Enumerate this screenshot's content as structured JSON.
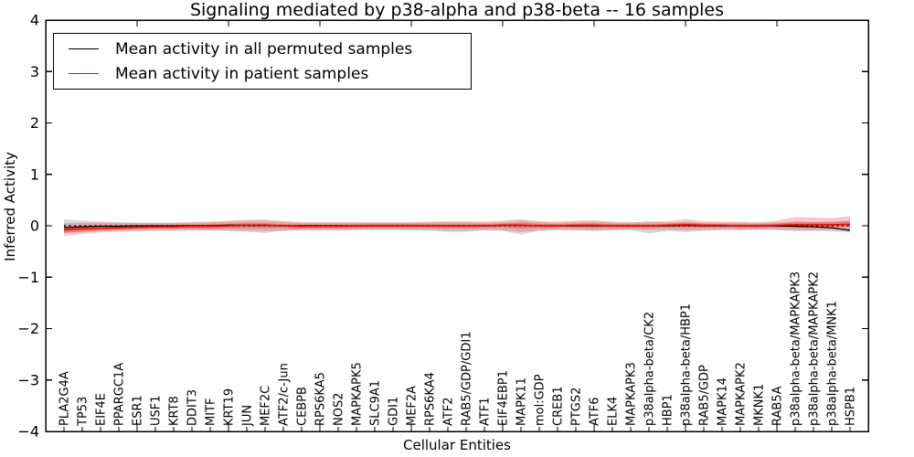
{
  "chart_data": {
    "type": "line",
    "title": "Signaling mediated by p38-alpha and p38-beta -- 16 samples",
    "xlabel": "Cellular Entities",
    "ylabel": "Inferred Activity",
    "ylim": [
      -4,
      4
    ],
    "yticks": [
      4,
      3,
      2,
      1,
      0,
      -1,
      -2,
      -3,
      -4
    ],
    "ytick_labels": [
      "4",
      "3",
      "2",
      "1",
      "0",
      "−1",
      "−2",
      "−3",
      "−4"
    ],
    "grid": false,
    "legend_position": "upper left",
    "categories": [
      "PLA2G4A",
      "TP53",
      "EIF4E",
      "PPARGC1A",
      "ESR1",
      "USF1",
      "KRT8",
      "DDIT3",
      "MITF",
      "KRT19",
      "JUN",
      "MEF2C",
      "ATF2/c-Jun",
      "CEBPB",
      "RPS6KA5",
      "NOS2",
      "MAPKAPK5",
      "SLC9A1",
      "GDI1",
      "MEF2A",
      "RPS6KA4",
      "ATF2",
      "RAB5/GDP/GDI1",
      "ATF1",
      "EIF4EBP1",
      "MAPK11",
      "mol:GDP",
      "CREB1",
      "PTGS2",
      "ATF6",
      "ELK4",
      "MAPKAPK3",
      "p38alpha-beta/CK2",
      "HBP1",
      "p38alpha-beta/HBP1",
      "RAB5/GDP",
      "MAPK14",
      "MAPKAPK2",
      "MKNK1",
      "RAB5A",
      "p38alpha-beta/MAPKAPK3",
      "p38alpha-beta/MAPKAPK2",
      "p38alpha-beta/MNK1",
      "HSPB1"
    ],
    "series": [
      {
        "name": "Mean activity in all permuted samples",
        "color": "#000000",
        "style": "solid",
        "values": [
          -0.04,
          -0.02,
          -0.01,
          -0.01,
          0,
          0,
          0,
          0,
          0,
          0.01,
          0.01,
          0.01,
          0,
          0,
          0,
          0,
          0,
          0,
          0,
          0,
          0,
          0,
          0,
          0,
          0.01,
          0.01,
          0,
          0,
          0,
          0,
          0,
          0,
          0,
          0,
          0.01,
          0,
          0,
          0,
          0,
          0,
          -0.01,
          -0.02,
          -0.04,
          -0.09
        ]
      },
      {
        "name": "Mean activity in patient samples",
        "color": "#ff0000",
        "style": "solid",
        "values": [
          -0.08,
          -0.06,
          -0.05,
          -0.04,
          -0.03,
          -0.02,
          -0.02,
          -0.01,
          -0.01,
          0,
          0.01,
          0.01,
          0,
          -0.01,
          -0.01,
          -0.01,
          0,
          0,
          0,
          0,
          0,
          0,
          0,
          0,
          0.01,
          0.01,
          0,
          0,
          0.01,
          0.01,
          0,
          0,
          0,
          0.01,
          0.02,
          0.01,
          0.01,
          0,
          0,
          0.01,
          0.02,
          0.02,
          0.02,
          0.03
        ]
      }
    ],
    "bands": [
      {
        "name": "permuted-samples-range",
        "color": "#999999",
        "opacity": 0.38,
        "upper": [
          0.12,
          0.1,
          0.08,
          0.07,
          0.06,
          0.06,
          0.06,
          0.06,
          0.07,
          0.08,
          0.09,
          0.1,
          0.08,
          0.06,
          0.06,
          0.06,
          0.06,
          0.06,
          0.06,
          0.06,
          0.07,
          0.08,
          0.08,
          0.06,
          0.07,
          0.1,
          0.07,
          0.06,
          0.07,
          0.08,
          0.07,
          0.06,
          0.08,
          0.06,
          0.08,
          0.06,
          0.06,
          0.06,
          0.05,
          0.06,
          0.07,
          0.07,
          0.08,
          0.1
        ],
        "lower": [
          -0.14,
          -0.12,
          -0.1,
          -0.09,
          -0.08,
          -0.08,
          -0.08,
          -0.08,
          -0.09,
          -0.1,
          -0.12,
          -0.14,
          -0.1,
          -0.08,
          -0.08,
          -0.08,
          -0.08,
          -0.08,
          -0.08,
          -0.09,
          -0.1,
          -0.12,
          -0.12,
          -0.09,
          -0.1,
          -0.17,
          -0.1,
          -0.08,
          -0.09,
          -0.1,
          -0.09,
          -0.08,
          -0.15,
          -0.1,
          -0.12,
          -0.1,
          -0.08,
          -0.08,
          -0.07,
          -0.08,
          -0.1,
          -0.1,
          -0.11,
          -0.13
        ]
      },
      {
        "name": "patient-samples-range-outer",
        "color": "#ee3333",
        "opacity": 0.28,
        "upper": [
          0.05,
          0.06,
          0.06,
          0.06,
          0.06,
          0.06,
          0.06,
          0.07,
          0.08,
          0.1,
          0.12,
          0.12,
          0.09,
          0.07,
          0.07,
          0.07,
          0.07,
          0.07,
          0.07,
          0.07,
          0.08,
          0.08,
          0.08,
          0.08,
          0.1,
          0.13,
          0.09,
          0.08,
          0.1,
          0.11,
          0.08,
          0.07,
          0.08,
          0.09,
          0.13,
          0.09,
          0.08,
          0.08,
          0.07,
          0.1,
          0.17,
          0.16,
          0.15,
          0.19
        ],
        "lower": [
          -0.2,
          -0.16,
          -0.13,
          -0.12,
          -0.11,
          -0.1,
          -0.1,
          -0.09,
          -0.09,
          -0.09,
          -0.09,
          -0.1,
          -0.09,
          -0.09,
          -0.09,
          -0.09,
          -0.08,
          -0.08,
          -0.08,
          -0.08,
          -0.08,
          -0.09,
          -0.09,
          -0.08,
          -0.09,
          -0.12,
          -0.09,
          -0.08,
          -0.08,
          -0.09,
          -0.08,
          -0.08,
          -0.08,
          -0.08,
          -0.09,
          -0.08,
          -0.08,
          -0.08,
          -0.07,
          -0.08,
          -0.09,
          -0.09,
          -0.08,
          -0.08
        ]
      },
      {
        "name": "patient-samples-range-inner",
        "color": "#dd2222",
        "opacity": 0.32,
        "upper": [
          0,
          0,
          0,
          0,
          0.01,
          0.01,
          0.01,
          0.02,
          0.03,
          0.04,
          0.05,
          0.05,
          0.03,
          0.02,
          0.02,
          0.02,
          0.03,
          0.03,
          0.03,
          0.03,
          0.03,
          0.03,
          0.03,
          0.03,
          0.04,
          0.06,
          0.04,
          0.03,
          0.04,
          0.05,
          0.03,
          0.03,
          0.03,
          0.04,
          0.06,
          0.04,
          0.03,
          0.03,
          0.03,
          0.04,
          0.08,
          0.07,
          0.07,
          0.09
        ],
        "lower": [
          -0.13,
          -0.11,
          -0.09,
          -0.08,
          -0.07,
          -0.06,
          -0.06,
          -0.05,
          -0.05,
          -0.04,
          -0.04,
          -0.04,
          -0.04,
          -0.04,
          -0.04,
          -0.04,
          -0.04,
          -0.03,
          -0.03,
          -0.03,
          -0.03,
          -0.04,
          -0.04,
          -0.03,
          -0.03,
          -0.05,
          -0.04,
          -0.03,
          -0.03,
          -0.04,
          -0.03,
          -0.03,
          -0.04,
          -0.03,
          -0.03,
          -0.03,
          -0.03,
          -0.03,
          -0.03,
          -0.03,
          -0.03,
          -0.03,
          -0.02,
          -0.02
        ]
      }
    ],
    "zero_line": {
      "value": 0,
      "color": "#000000",
      "style": "dotted"
    }
  }
}
